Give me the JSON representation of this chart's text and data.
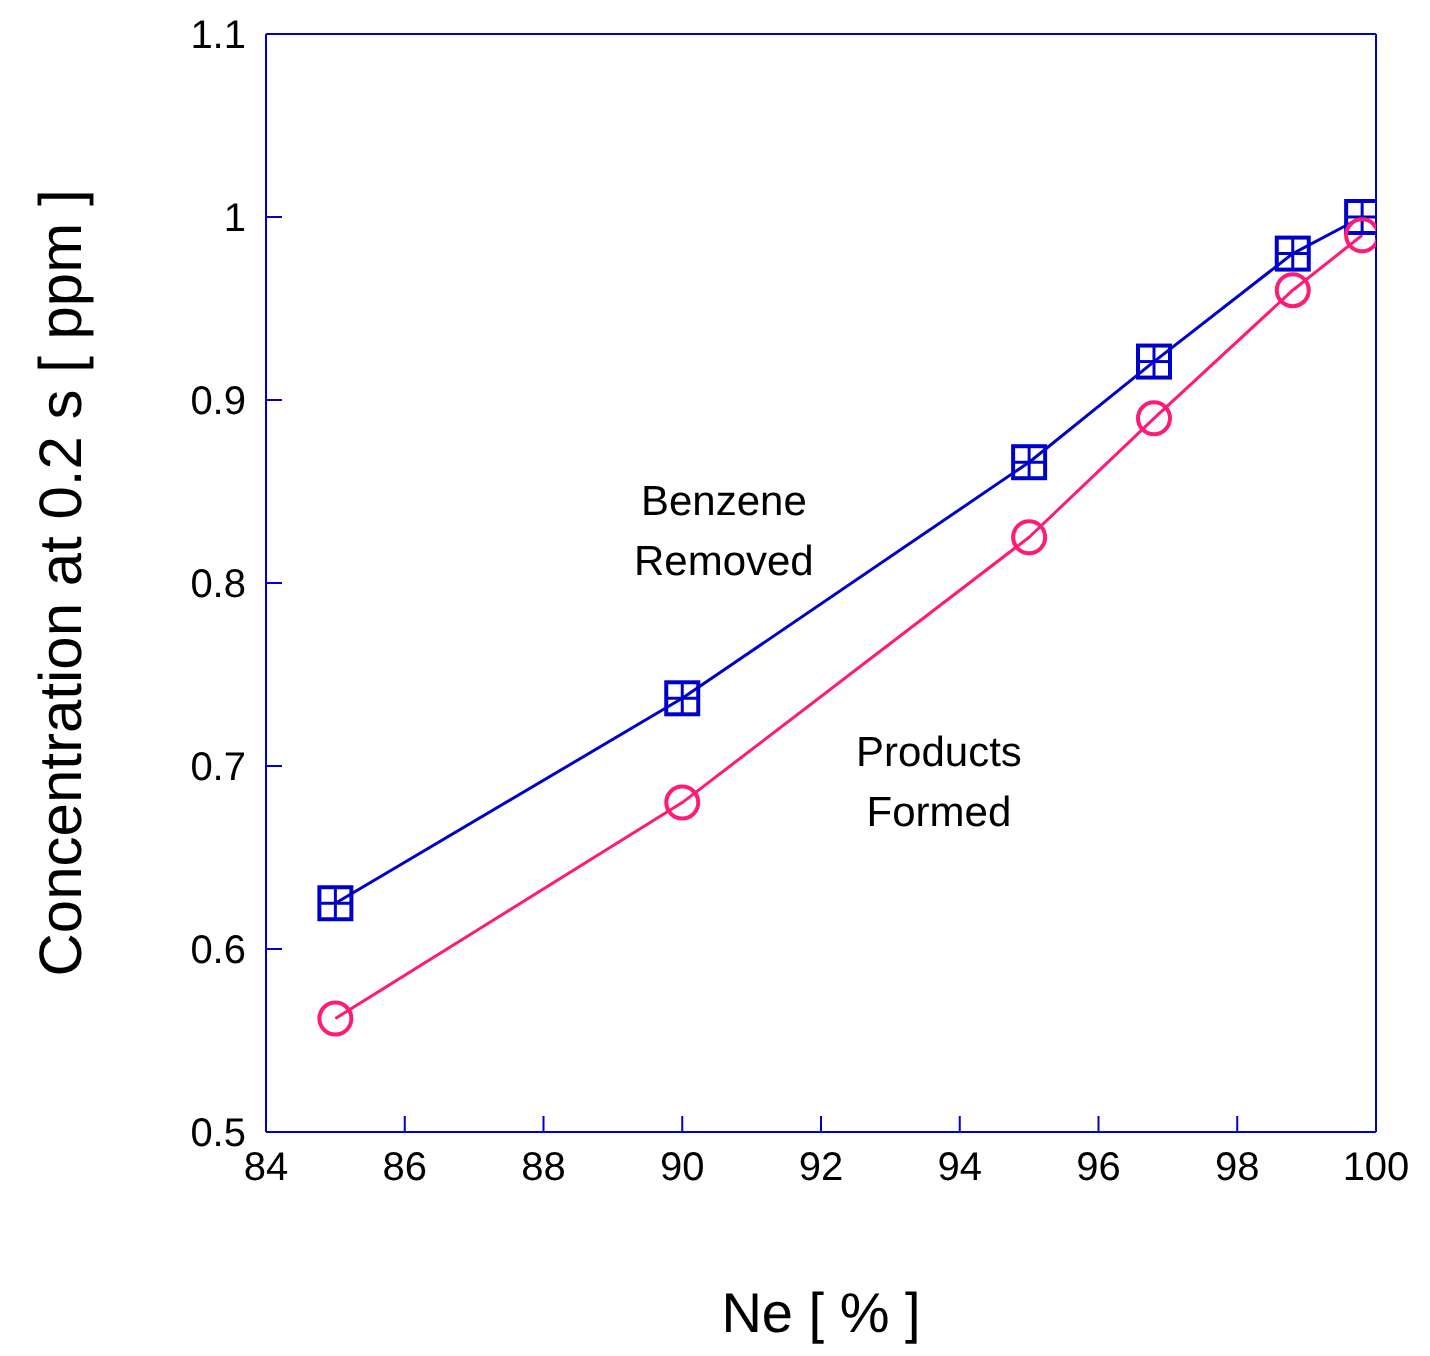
{
  "chart_data": {
    "type": "line",
    "xlabel": "Ne [ % ]",
    "ylabel": "Concentration at 0.2 s [ ppm ]",
    "xlim": [
      84,
      100
    ],
    "xticks": [
      84,
      86,
      88,
      90,
      92,
      94,
      96,
      98,
      100
    ],
    "ylim": [
      0.5,
      1.1
    ],
    "yticks": [
      0.5,
      0.6,
      0.7,
      0.8,
      0.9,
      1,
      1.1
    ],
    "line_style": "solid",
    "series": [
      {
        "name": "Benzene Removed",
        "color": "#0000cc",
        "marker": "square",
        "x": [
          85,
          90,
          95,
          96.8,
          98.8,
          99.8
        ],
        "values": [
          0.625,
          0.737,
          0.866,
          0.921,
          0.98,
          1.0
        ]
      },
      {
        "name": "Products Formed",
        "color": "#ff1a75",
        "marker": "circle",
        "x": [
          85,
          90,
          95,
          96.8,
          98.8,
          99.8
        ],
        "values": [
          0.562,
          0.68,
          0.825,
          0.89,
          0.96,
          0.99
        ]
      }
    ]
  }
}
